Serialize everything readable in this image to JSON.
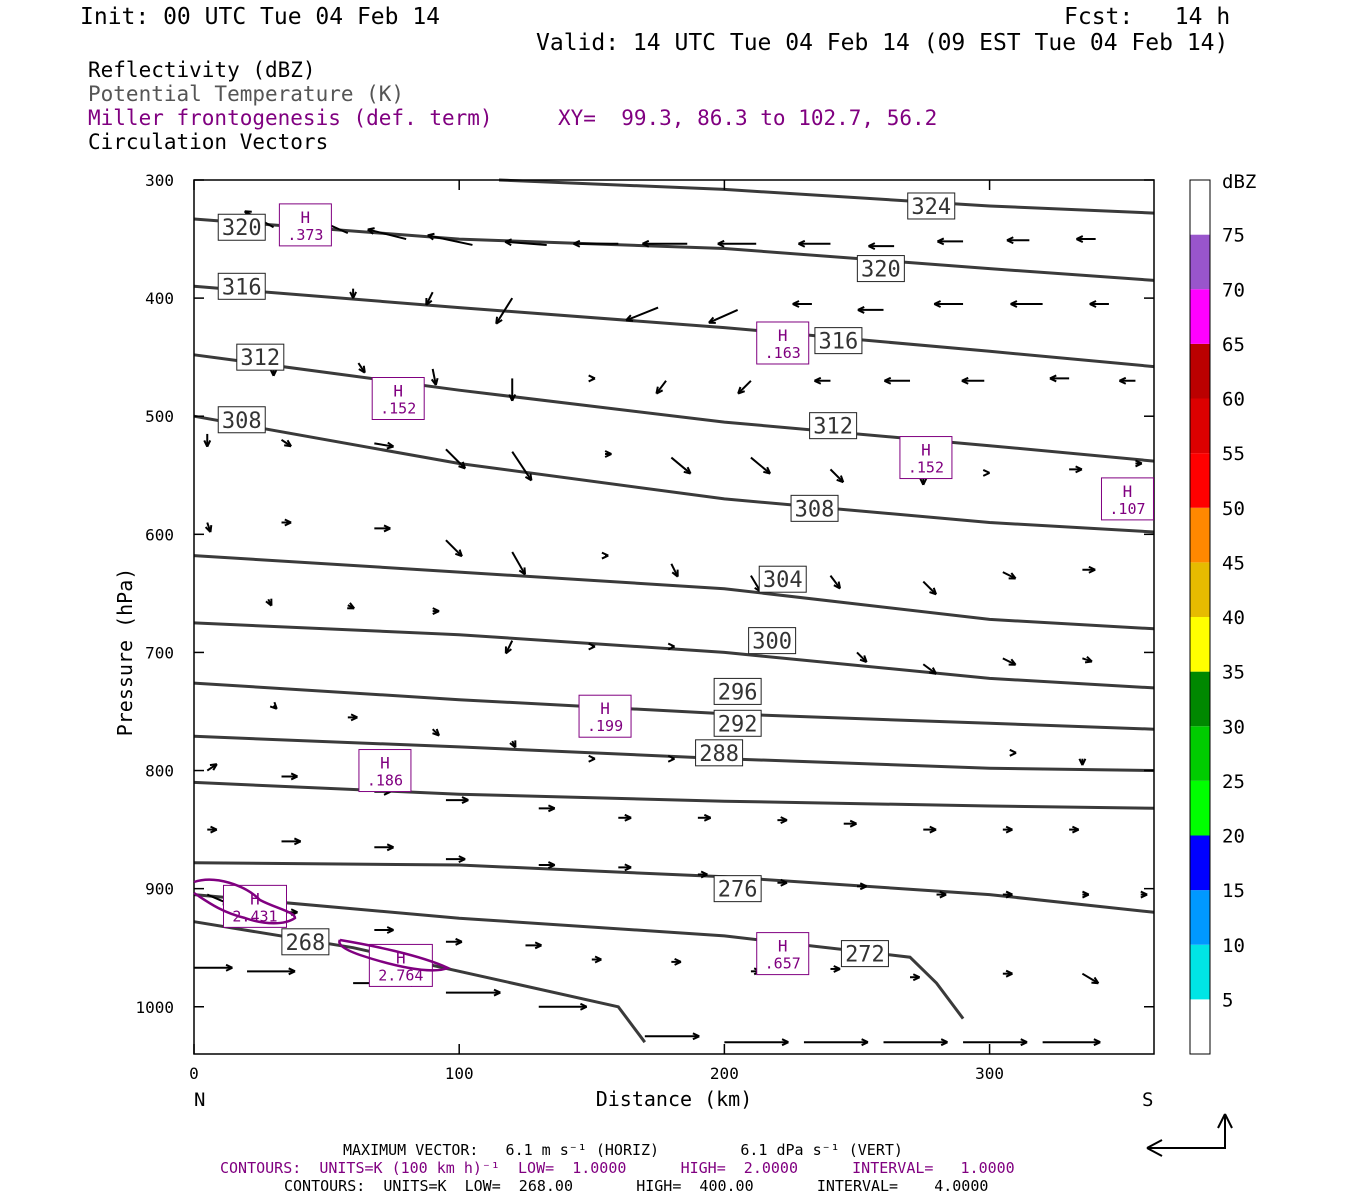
{
  "header": {
    "init": "Init: 00 UTC Tue 04 Feb 14",
    "fcst": "Fcst:   14 h",
    "valid": "Valid: 14 UTC Tue 04 Feb 14 (09 EST Tue 04 Feb 14)",
    "field1": "Reflectivity (dBZ)",
    "field2": "Potential Temperature (K)",
    "field3": "Miller frontogenesis (def. term)",
    "xy": "XY=  99.3, 86.3 to 102.7, 56.2",
    "field4": "Circulation Vectors"
  },
  "footer": {
    "max_vector": "MAXIMUM VECTOR:   6.1 m s⁻¹ (HORIZ)         6.1 dPa s⁻¹ (VERT)",
    "contours_purple": "CONTOURS:  UNITS=K (100 km h)⁻¹  LOW=  1.0000      HIGH=  2.0000      INTERVAL=   1.0000",
    "contours_black": "CONTOURS:  UNITS=K  LOW=  268.00       HIGH=  400.00       INTERVAL=    4.0000"
  },
  "colors": {
    "theta": "#3a3a3a",
    "fronto": "#800080",
    "vector": "#000000"
  },
  "chart_data": {
    "type": "cross-section",
    "xlabel": "Distance (km)",
    "ylabel": "Pressure (hPa)",
    "xlim": [
      0,
      362
    ],
    "ylim": [
      1040,
      300
    ],
    "x_ticks": [
      0,
      100,
      200,
      300
    ],
    "y_ticks": [
      300,
      400,
      500,
      600,
      700,
      800,
      900,
      1000
    ],
    "left_end_label": "N",
    "right_end_label": "S",
    "theta_contours": [
      {
        "label": "324",
        "lx": 278,
        "lp": 322,
        "pts": [
          [
            115,
            300
          ],
          [
            200,
            308
          ],
          [
            300,
            322
          ],
          [
            362,
            328
          ]
        ]
      },
      {
        "label": "320",
        "lx": 18,
        "lp": 340,
        "pts": [
          [
            0,
            333
          ],
          [
            100,
            350
          ],
          [
            200,
            358
          ],
          [
            300,
            375
          ],
          [
            362,
            385
          ]
        ]
      },
      {
        "label": "320",
        "lx": 259,
        "lp": 375,
        "pts": []
      },
      {
        "label": "316",
        "lx": 18,
        "lp": 390,
        "pts": [
          [
            0,
            390
          ],
          [
            100,
            408
          ],
          [
            200,
            425
          ],
          [
            300,
            445
          ],
          [
            362,
            458
          ]
        ]
      },
      {
        "label": "316",
        "lx": 243,
        "lp": 436,
        "pts": []
      },
      {
        "label": "312",
        "lx": 25,
        "lp": 450,
        "pts": [
          [
            0,
            448
          ],
          [
            100,
            478
          ],
          [
            200,
            505
          ],
          [
            300,
            525
          ],
          [
            362,
            538
          ]
        ]
      },
      {
        "label": "312",
        "lx": 241,
        "lp": 508,
        "pts": []
      },
      {
        "label": "308",
        "lx": 18,
        "lp": 503,
        "pts": [
          [
            0,
            500
          ],
          [
            100,
            540
          ],
          [
            200,
            570
          ],
          [
            300,
            590
          ],
          [
            362,
            598
          ]
        ]
      },
      {
        "label": "308",
        "lx": 234,
        "lp": 578,
        "pts": []
      },
      {
        "label": "304",
        "lx": 222,
        "lp": 638,
        "pts": [
          [
            0,
            618
          ],
          [
            100,
            632
          ],
          [
            200,
            646
          ],
          [
            300,
            672
          ],
          [
            362,
            680
          ]
        ]
      },
      {
        "label": "300",
        "lx": 218,
        "lp": 690,
        "pts": [
          [
            0,
            675
          ],
          [
            100,
            685
          ],
          [
            200,
            700
          ],
          [
            300,
            722
          ],
          [
            362,
            730
          ]
        ]
      },
      {
        "label": "296",
        "lx": 205,
        "lp": 733,
        "pts": [
          [
            0,
            726
          ],
          [
            100,
            740
          ],
          [
            200,
            752
          ],
          [
            300,
            760
          ],
          [
            362,
            765
          ]
        ]
      },
      {
        "label": "292",
        "lx": 205,
        "lp": 760,
        "pts": [
          [
            0,
            771
          ],
          [
            100,
            780
          ],
          [
            200,
            790
          ],
          [
            300,
            798
          ],
          [
            362,
            800
          ]
        ]
      },
      {
        "label": "288",
        "lx": 198,
        "lp": 785,
        "pts": [
          [
            0,
            810
          ],
          [
            100,
            820
          ],
          [
            200,
            826
          ],
          [
            300,
            830
          ],
          [
            362,
            832
          ]
        ]
      },
      {
        "label": "276",
        "lx": 205,
        "lp": 900,
        "pts": [
          [
            0,
            878
          ],
          [
            100,
            880
          ],
          [
            200,
            890
          ],
          [
            300,
            905
          ],
          [
            362,
            920
          ]
        ]
      },
      {
        "label": "272",
        "lx": 253,
        "lp": 955,
        "pts": [
          [
            0,
            905
          ],
          [
            100,
            925
          ],
          [
            200,
            940
          ],
          [
            270,
            958
          ],
          [
            280,
            980
          ],
          [
            290,
            1010
          ]
        ]
      },
      {
        "label": "268",
        "lx": 42,
        "lp": 945,
        "pts": [
          [
            0,
            928
          ],
          [
            60,
            950
          ],
          [
            120,
            980
          ],
          [
            160,
            1000
          ],
          [
            170,
            1030
          ]
        ]
      }
    ],
    "fronto_highs": [
      {
        "label": "H",
        "value": ".373",
        "x": 42,
        "p": 338
      },
      {
        "label": "H",
        "value": ".163",
        "x": 222,
        "p": 438
      },
      {
        "label": "H",
        "value": ".152",
        "x": 77,
        "p": 485
      },
      {
        "label": "H",
        "value": ".152",
        "x": 276,
        "p": 535
      },
      {
        "label": "H",
        "value": ".107",
        "x": 352,
        "p": 570
      },
      {
        "label": "H",
        "value": ".199",
        "x": 155,
        "p": 754
      },
      {
        "label": "H",
        "value": ".186",
        "x": 72,
        "p": 800
      },
      {
        "label": "H",
        "value": "2.431",
        "x": 23,
        "p": 915
      },
      {
        "label": "H",
        "value": ".657",
        "x": 222,
        "p": 955
      },
      {
        "label": "H",
        "value": "2.764",
        "x": 78,
        "p": 965
      }
    ],
    "colorbar": {
      "label": "dBZ",
      "ticks": [
        "5",
        "10",
        "15",
        "20",
        "25",
        "30",
        "35",
        "40",
        "45",
        "50",
        "55",
        "60",
        "65",
        "70",
        "75"
      ],
      "colors": [
        "#ffffff",
        "#00e5e5",
        "#0099ff",
        "#0000ff",
        "#00ff00",
        "#00cc00",
        "#008800",
        "#ffff00",
        "#e6bb00",
        "#ff8800",
        "#ff0000",
        "#dd0000",
        "#bb0000",
        "#ff00ff",
        "#9955cc",
        "#ffffff"
      ]
    },
    "vectors": [
      [
        30,
        340,
        -9,
        -5
      ],
      [
        58,
        345,
        -9,
        -4
      ],
      [
        80,
        350,
        -12,
        -3
      ],
      [
        105,
        355,
        -14,
        -3
      ],
      [
        133,
        355,
        -13,
        -1
      ],
      [
        160,
        354,
        -14,
        0
      ],
      [
        186,
        354,
        -14,
        0
      ],
      [
        212,
        354,
        -12,
        0
      ],
      [
        240,
        354,
        -10,
        0
      ],
      [
        264,
        356,
        -8,
        0
      ],
      [
        290,
        352,
        -8,
        0
      ],
      [
        315,
        351,
        -7,
        0
      ],
      [
        340,
        350,
        -6,
        0
      ],
      [
        60,
        392,
        0,
        3
      ],
      [
        90,
        395,
        -2,
        4
      ],
      [
        120,
        400,
        -5,
        8
      ],
      [
        175,
        408,
        -10,
        4
      ],
      [
        205,
        410,
        -9,
        4
      ],
      [
        233,
        405,
        -6,
        0
      ],
      [
        260,
        410,
        -8,
        0
      ],
      [
        290,
        405,
        -9,
        0
      ],
      [
        320,
        405,
        -10,
        0
      ],
      [
        345,
        405,
        -6,
        0
      ],
      [
        30,
        455,
        0,
        4
      ],
      [
        62,
        455,
        2,
        3
      ],
      [
        90,
        460,
        1,
        5
      ],
      [
        120,
        468,
        0,
        7
      ],
      [
        150,
        468,
        1,
        0
      ],
      [
        178,
        470,
        -3,
        4
      ],
      [
        210,
        470,
        -4,
        4
      ],
      [
        240,
        470,
        -5,
        0
      ],
      [
        270,
        470,
        -8,
        0
      ],
      [
        298,
        470,
        -7,
        0
      ],
      [
        330,
        468,
        -6,
        0
      ],
      [
        355,
        470,
        -5,
        0
      ],
      [
        5,
        515,
        0,
        4
      ],
      [
        33,
        520,
        3,
        2
      ],
      [
        68,
        523,
        6,
        1
      ],
      [
        95,
        528,
        6,
        6
      ],
      [
        120,
        530,
        6,
        9
      ],
      [
        155,
        532,
        2,
        0
      ],
      [
        180,
        535,
        6,
        5
      ],
      [
        210,
        535,
        6,
        5
      ],
      [
        240,
        545,
        4,
        4
      ],
      [
        275,
        550,
        0,
        3
      ],
      [
        300,
        548,
        0,
        0
      ],
      [
        330,
        545,
        4,
        0
      ],
      [
        355,
        540,
        2,
        0
      ],
      [
        5,
        590,
        1,
        3
      ],
      [
        33,
        590,
        3,
        0
      ],
      [
        68,
        595,
        5,
        0
      ],
      [
        95,
        605,
        5,
        5
      ],
      [
        120,
        615,
        4,
        7
      ],
      [
        155,
        618,
        1,
        0
      ],
      [
        180,
        625,
        2,
        4
      ],
      [
        210,
        635,
        3,
        5
      ],
      [
        240,
        635,
        3,
        4
      ],
      [
        275,
        640,
        4,
        4
      ],
      [
        305,
        632,
        4,
        2
      ],
      [
        335,
        630,
        4,
        0
      ],
      [
        28,
        655,
        1,
        2
      ],
      [
        58,
        660,
        2,
        1
      ],
      [
        90,
        665,
        2,
        0
      ],
      [
        120,
        690,
        -2,
        4
      ],
      [
        150,
        695,
        1,
        0
      ],
      [
        180,
        695,
        1,
        0
      ],
      [
        250,
        700,
        3,
        3
      ],
      [
        275,
        710,
        4,
        3
      ],
      [
        305,
        705,
        4,
        2
      ],
      [
        335,
        705,
        3,
        1
      ],
      [
        30,
        745,
        1,
        1
      ],
      [
        58,
        755,
        3,
        0
      ],
      [
        90,
        765,
        2,
        2
      ],
      [
        120,
        775,
        1,
        2
      ],
      [
        150,
        790,
        1,
        0
      ],
      [
        180,
        790,
        1,
        0
      ],
      [
        310,
        785,
        0,
        0
      ],
      [
        335,
        790,
        0,
        2
      ],
      [
        5,
        800,
        3,
        -2
      ],
      [
        33,
        805,
        5,
        0
      ],
      [
        68,
        818,
        5,
        0
      ],
      [
        95,
        825,
        7,
        0
      ],
      [
        130,
        832,
        5,
        0
      ],
      [
        160,
        840,
        4,
        0
      ],
      [
        190,
        840,
        4,
        0
      ],
      [
        220,
        842,
        3,
        0
      ],
      [
        245,
        845,
        4,
        0
      ],
      [
        275,
        850,
        4,
        0
      ],
      [
        305,
        850,
        3,
        0
      ],
      [
        330,
        850,
        3,
        0
      ],
      [
        5,
        850,
        3,
        0
      ],
      [
        33,
        860,
        6,
        0
      ],
      [
        68,
        865,
        6,
        0
      ],
      [
        95,
        875,
        6,
        0
      ],
      [
        130,
        880,
        5,
        0
      ],
      [
        160,
        882,
        4,
        0
      ],
      [
        190,
        888,
        3,
        0
      ],
      [
        220,
        895,
        3,
        0
      ],
      [
        250,
        898,
        3,
        0
      ],
      [
        280,
        905,
        3,
        0
      ],
      [
        305,
        905,
        3,
        0
      ],
      [
        335,
        905,
        2,
        0
      ],
      [
        357,
        905,
        2,
        0
      ],
      [
        5,
        905,
        7,
        3
      ],
      [
        33,
        920,
        5,
        0
      ],
      [
        68,
        935,
        6,
        0
      ],
      [
        95,
        945,
        5,
        0
      ],
      [
        125,
        948,
        5,
        0
      ],
      [
        150,
        960,
        3,
        0
      ],
      [
        180,
        962,
        3,
        0
      ],
      [
        210,
        970,
        3,
        0
      ],
      [
        240,
        968,
        3,
        0
      ],
      [
        270,
        975,
        3,
        0
      ],
      [
        305,
        972,
        3,
        0
      ],
      [
        335,
        972,
        5,
        3
      ],
      [
        0,
        967,
        12,
        0
      ],
      [
        20,
        970,
        15,
        0
      ],
      [
        60,
        980,
        20,
        0
      ],
      [
        95,
        988,
        17,
        0
      ],
      [
        130,
        1000,
        15,
        0
      ],
      [
        170,
        1025,
        17,
        0
      ],
      [
        200,
        1030,
        20,
        0
      ],
      [
        230,
        1030,
        20,
        0
      ],
      [
        260,
        1030,
        20,
        0
      ],
      [
        290,
        1030,
        20,
        0
      ],
      [
        320,
        1030,
        18,
        0
      ]
    ]
  }
}
